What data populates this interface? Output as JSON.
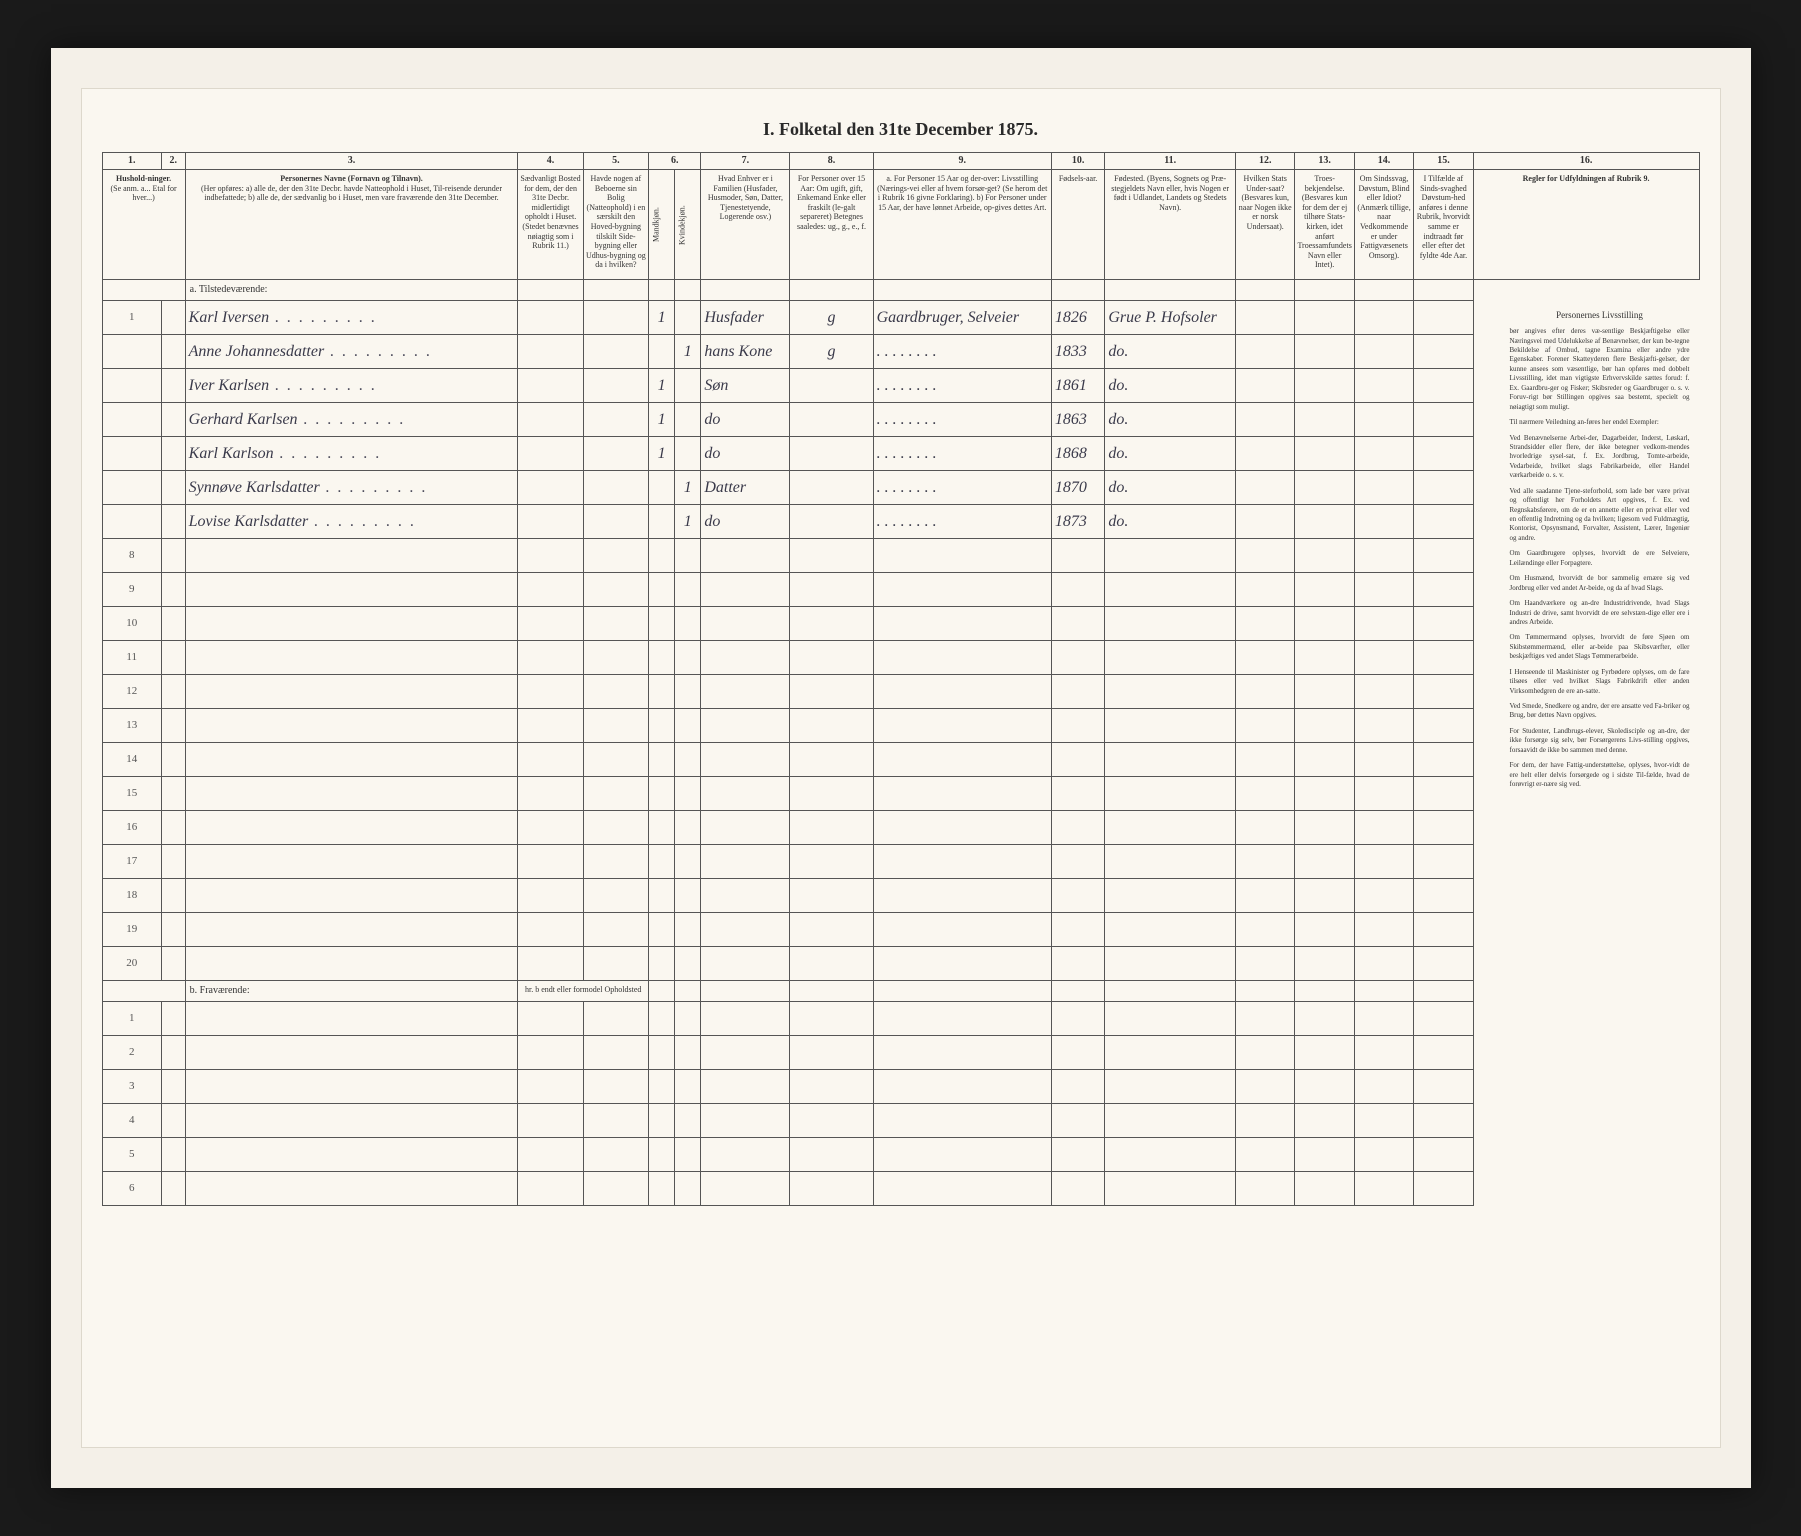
{
  "title": "I. Folketal den 31te December 1875.",
  "colnums": [
    "1.",
    "2.",
    "3.",
    "4.",
    "5.",
    "6.",
    "7.",
    "8.",
    "9.",
    "10.",
    "11.",
    "12.",
    "13.",
    "14.",
    "15.",
    "16."
  ],
  "headers": {
    "c1": "Hushold-ninger.",
    "c1sub": "(Se anm. a... Etal for hver...)",
    "c3title": "Personernes Navne (Fornavn og Tilnavn).",
    "c3sub": "(Her opføres: a) alle de, der den 31te Decbr. havde Natteophold i Huset, Til-reisende derunder indbefattede; b) alle de, der sædvanlig bo i Huset, men vare fraværende den 31te December.",
    "c4": "Sædvanligt Bosted for dem, der den 31te Decbr. midlertidigt opholdt i Huset. (Stedet benævnes nøiagtig som i Rubrik 11.)",
    "c5": "Havde nogen af Beboerne sin Bolig (Natteophold) i en særskilt den Hoved-bygning tilskilt Side-bygning eller Udhus-bygning og da i hvilken?",
    "c6": "Kjøn.",
    "c6a": "Mandkjøn.",
    "c6b": "Kvindekjøn.",
    "c7": "Hvad Enhver er i Familien (Husfader, Husmoder, Søn, Datter, Tjenestetyende, Logerende osv.)",
    "c8": "For Personer over 15 Aar: Om ugift, gift, Enkemand Enke eller fraskilt (le-galt separeret) Betegnes saaledes: ug., g., e., f.",
    "c9": "a. For Personer 15 Aar og der-over: Livsstilling (Nærings-vei eller af hvem forsør-get? (Se herom det i Rubrik 16 givne Forklaring). b) For Personer under 15 Aar, der have lønnet Arbeide, op-gives dettes Art.",
    "c10": "Fødsels-aar.",
    "c11": "Fødested. (Byens, Sognets og Præ-stegjeldets Navn eller, hvis Nogen er født i Udlandet, Landets og Stedets Navn).",
    "c12": "Hvilken Stats Under-saat? (Besvares kun, naar Nogen ikke er norsk Undersaat).",
    "c13": "Troes-bekjendelse. (Besvares kun for dem der ej tilhøre Stats-kirken, idet anført Troessamfundets Navn eller Intet).",
    "c14": "Om Sindssvag, Døvstum, Blind eller Idiot? (Anmærk tillige, naar Vedkommende er under Fattigvæsenets Omsorg).",
    "c15": "I Tilfælde af Sinds-svaghed Døvstum-hed anføres i denne Rubrik, hvorvidt samme er indtraadt før eller efter det fyldte 4de Aar.",
    "c16title": "Regler for Udfyldningen af Rubrik 9."
  },
  "section_a": "a. Tilstedeværende:",
  "section_b": "b. Fraværende:",
  "section_b_note": "hr. b endt eller formodel Opholdsted",
  "rows": [
    {
      "n": "1",
      "name": "Karl Iversen",
      "m": "1",
      "fam": "Husfader",
      "civ": "g",
      "occ": "Gaardbruger, Selveier",
      "year": "1826",
      "place": "Grue P. Hofsoler"
    },
    {
      "n": "",
      "name": "Anne Johannesdatter",
      "f": "1",
      "fam": "hans Kone",
      "civ": "g",
      "occ": ". . . . . . . .",
      "year": "1833",
      "place": "do."
    },
    {
      "n": "",
      "name": "Iver Karlsen",
      "m": "1",
      "fam": "Søn",
      "civ": "",
      "occ": ". . . . . . . .",
      "year": "1861",
      "place": "do."
    },
    {
      "n": "",
      "name": "Gerhard Karlsen",
      "m": "1",
      "fam": "do",
      "civ": "",
      "occ": ". . . . . . . .",
      "year": "1863",
      "place": "do."
    },
    {
      "n": "",
      "name": "Karl Karlson",
      "m": "1",
      "fam": "do",
      "civ": "",
      "occ": ". . . . . . . .",
      "year": "1868",
      "place": "do."
    },
    {
      "n": "",
      "name": "Synnøve Karlsdatter",
      "f": "1",
      "fam": "Datter",
      "civ": "",
      "occ": ". . . . . . . .",
      "year": "1870",
      "place": "do."
    },
    {
      "n": "",
      "name": "Lovise Karlsdatter",
      "f": "1",
      "fam": "do",
      "civ": "",
      "occ": ". . . . . . . .",
      "year": "1873",
      "place": "do."
    }
  ],
  "empty_rows_a": [
    "8",
    "9",
    "10",
    "11",
    "12",
    "13",
    "14",
    "15",
    "16",
    "17",
    "18",
    "19",
    "20"
  ],
  "empty_rows_b": [
    "1",
    "2",
    "3",
    "4",
    "5",
    "6"
  ],
  "sidetext": {
    "title": "Personernes Livsstilling",
    "p1": "bør angives efter deres væ-sentlige Beskjæftigelse eller Næringsvei med Udelukkelse af Benævnelser, der kun be-tegne Bekildelse af Ombud, tagne Examina eller andre ydre Egenskaber. Forener Skatteyderen flere Beskjæfti-gelser, der kunne ansees som væsentlige, bør han opføres med dobbelt Livsstilling, idet man vigtigste Erhvervskilde sættes forud: f. Ex. Gaardbru-ger og Fisker; Skibsreder og Gaardbruger o. s. v. Foruv-rigt bør Stillingen opgives saa bestemt, specielt og nøiagtigt som muligt.",
    "p2": "Til nærmere Veiledning an-føres her endel Exempler:",
    "p3": "Ved Benævnelserne Arbei-der, Dagarbeider, Inderst, Løskarl, Strandsidder eller flere, der ikke betegner vedkom-mendes hvorledrige sysel-sat, f. Ex. Jordbrug, Tomte-arbeide, Vedarbeide, hvilket slags Fabrikarbeide, eller Handel værkarbeide o. s. v.",
    "p4": "Ved alle saadanne Tjene-steforhold, som lade bør være privat og offentligt her Forholdets Art opgives, f. Ex. ved Regnskabsførere, om de er en annette eller en privat eller ved en offentlig Indretning og da hvilken; ligesom ved Fuldmægtig, Kontorist, Opsynsmand, Forvalter, Assistent, Lærer, Ingeniør og andre.",
    "p5": "Om Gaardbrugere oplyses, hvorvidt de ere Selveiere, Leilændinge eller Forpagtere.",
    "p6": "Om Husmænd, hvorvidt de bor sammelig ernære sig ved Jordbrug eller ved andet Ar-beide, og da af hvad Slags.",
    "p7": "Om Haandværkere og an-dre Industridrivende, hvad Slags Industri de drive, samt hvorvidt de ere selvstæn-dige eller ere i andres Arbeide.",
    "p8": "Om Tømmermænd oplyses, hvorvidt de føre Sjøen om Skibstømmermænd, eller ar-beide paa Skibsværfter, eller beskjæftiges ved andet Slags Tømmerarbeide.",
    "p9": "I Henseende til Maskinister og Fyrbødere oplyses, om de fare tilsøes eller ved hvilket Slags Fabrikdrift eller anden Virksomhedgren de ere an-satte.",
    "p10": "Ved Smede, Snedkere og andre, der ere ansatte ved Fa-briker og Brug, bør dettes Navn opgives.",
    "p11": "For Studenter, Landbrugs-elever, Skoledisciple og an-dre, der ikke forsørge sig selv, bør Forsørgerens Livs-stilling opgives, forsaavidt de ikke bo sammen med denne.",
    "p12": "For dem, der have Fattig-understøttelse, oplyses, hvor-vidt de ere helt eller delvis forsørgede og i sidste Til-fælde, hvad de forøvrigt er-nære sig ved."
  }
}
